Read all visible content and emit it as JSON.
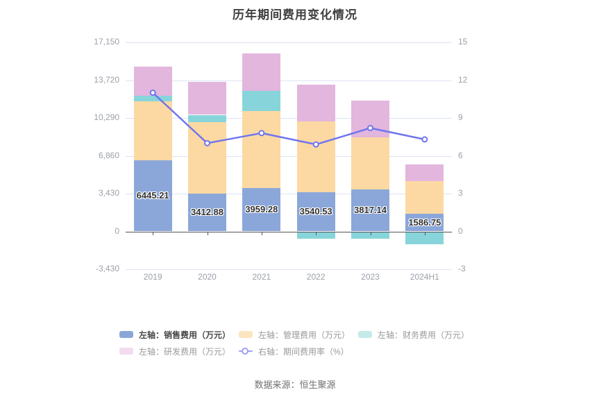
{
  "title": "历年期间费用变化情况",
  "footer": "数据来源：恒生聚源",
  "chart_data": {
    "type": "bar+line",
    "title": "历年期间费用变化情况",
    "stacked": true,
    "grid": true,
    "legend_position": "bottom",
    "categories": [
      "2019",
      "2020",
      "2021",
      "2022",
      "2023",
      "2024H1"
    ],
    "bar_series": [
      {
        "name": "左轴：销售费用（万元）",
        "color": "#8ba7d9",
        "values": [
          6445.21,
          3412.88,
          3959.28,
          3540.53,
          3817.14,
          1586.75
        ]
      },
      {
        "name": "左轴：管理费用（万元）",
        "color": "#fcd9a2",
        "values": [
          5350,
          6500,
          6960,
          6435,
          4730,
          3000
        ]
      },
      {
        "name": "左轴：财务费用（万元）",
        "color": "#87d5da",
        "values": [
          485,
          660,
          1855,
          -660,
          -650,
          -1145
        ]
      },
      {
        "name": "左轴：研发费用（万元）",
        "color": "#e2b6dd",
        "values": [
          2660,
          3010,
          3385,
          3355,
          3315,
          1510
        ]
      }
    ],
    "line_series": {
      "name": "右轴：期间费用率（%）",
      "color": "#7175ee",
      "axis": "right",
      "values": [
        11.0,
        7.0,
        7.8,
        6.9,
        8.2,
        7.3
      ]
    },
    "bar_value_labels": [
      "6445.21",
      "3412.88",
      "3959.28",
      "3540.53",
      "3817.14",
      "1586.75"
    ],
    "left_axis": {
      "min": -3430,
      "max": 17150,
      "tick_step": 3430,
      "tick_labels": [
        "17,150",
        "13,720",
        "10,290",
        "6,860",
        "3,430",
        "0",
        "-3,430"
      ]
    },
    "right_axis": {
      "min": -3,
      "max": 15,
      "tick_step": 3,
      "tick_labels": [
        "15",
        "12",
        "9",
        "6",
        "3",
        "0",
        "-3"
      ]
    },
    "legend": {
      "items": [
        {
          "label": "左轴：销售费用（万元）",
          "type": "rect",
          "swatch": "#8ba7d9",
          "emphasis": true
        },
        {
          "label": "左轴：管理费用（万元）",
          "type": "rect",
          "swatch": "#fbe5c1",
          "emphasis": false
        },
        {
          "label": "左轴：财务费用（万元）",
          "type": "rect",
          "swatch": "#c4eae9",
          "emphasis": false
        },
        {
          "label": "左轴：研发费用（万元）",
          "type": "rect",
          "swatch": "#f2dcee",
          "emphasis": false
        },
        {
          "label": "右轴：期间费用率（%）",
          "type": "line",
          "swatch": "#9fa0f1",
          "emphasis": false
        }
      ]
    }
  }
}
